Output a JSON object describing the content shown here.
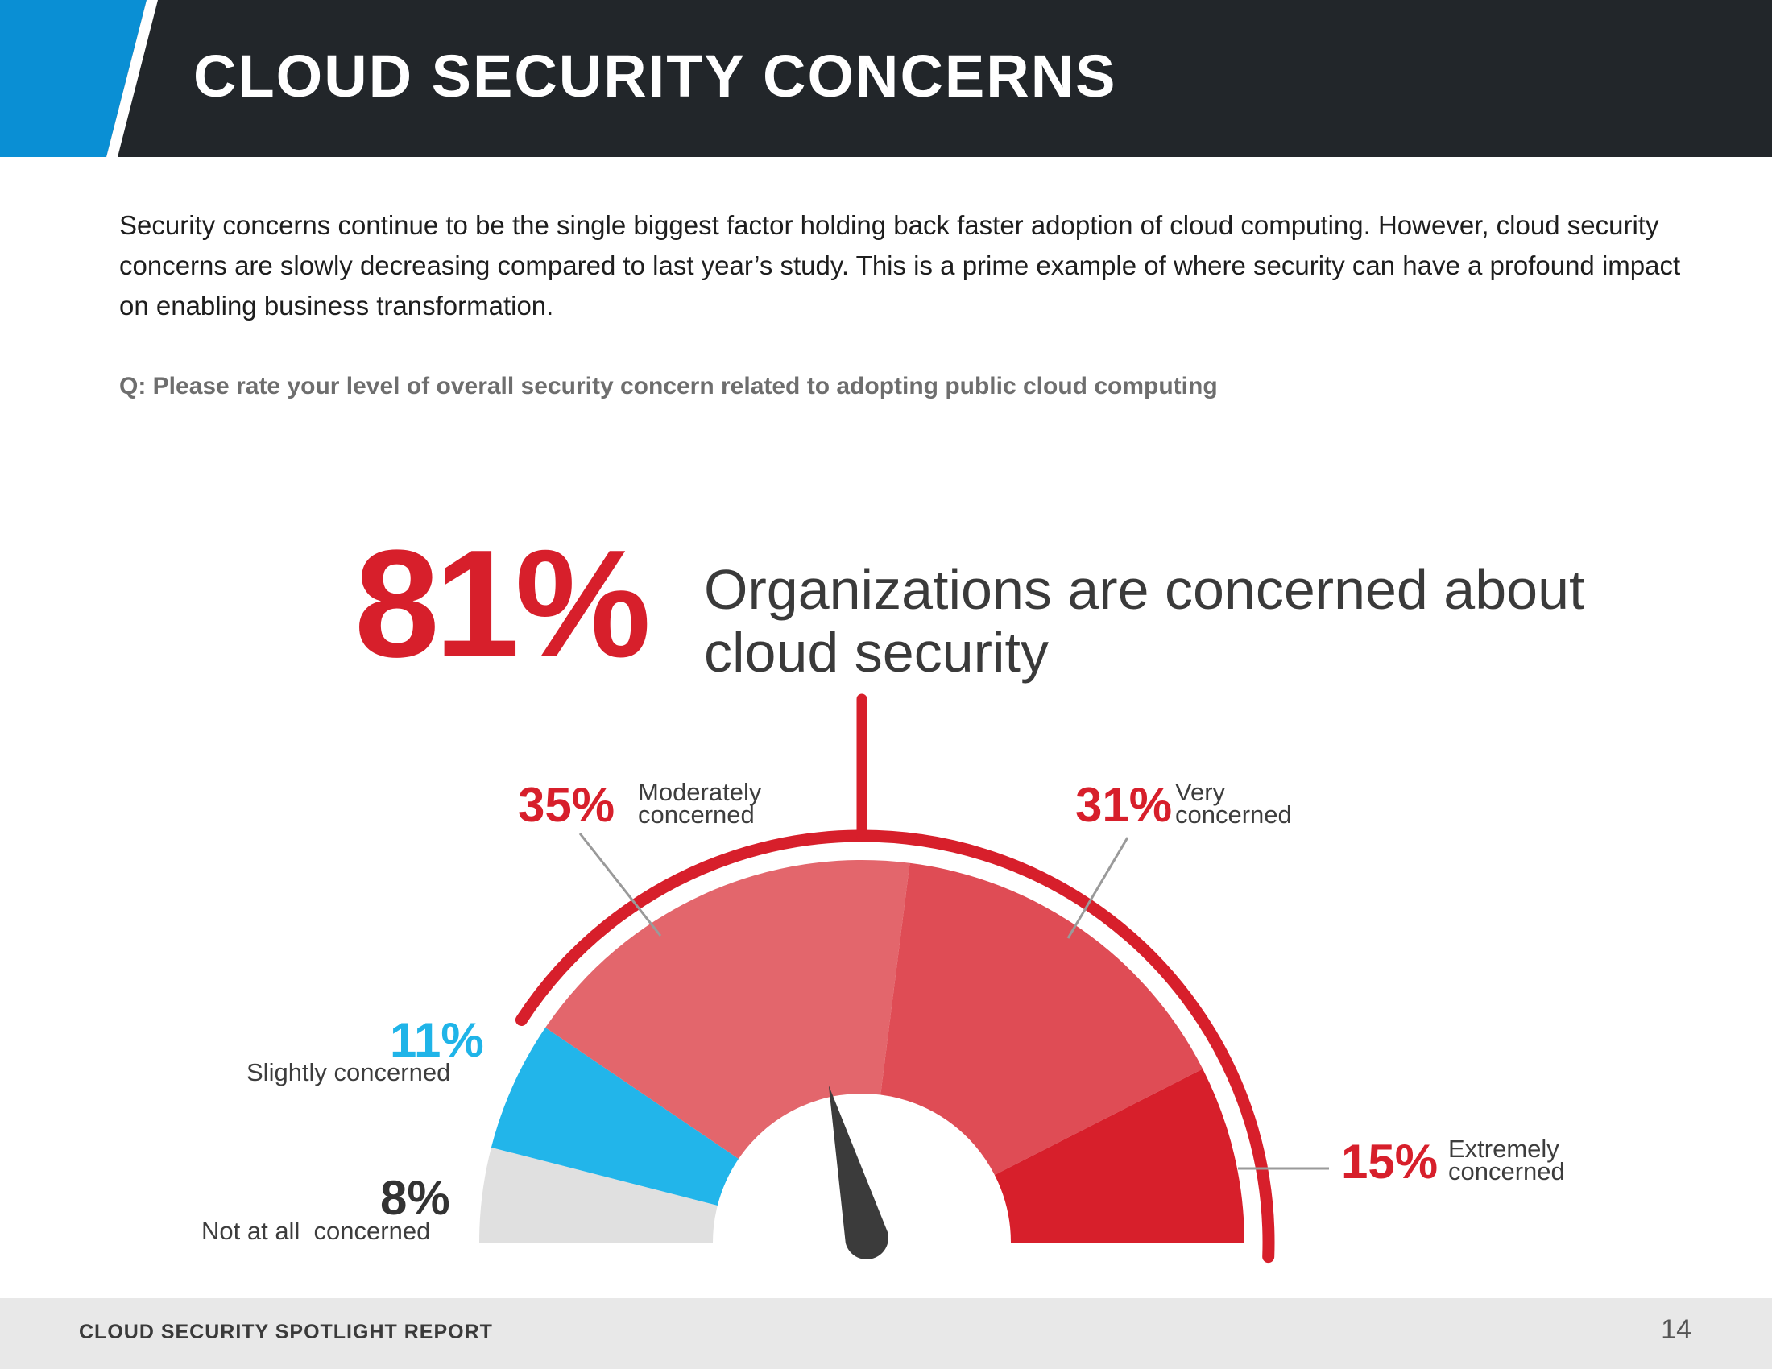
{
  "header": {
    "title": "CLOUD SECURITY CONCERNS",
    "accent_color": "#0a8fd4",
    "background_color": "#22262a"
  },
  "intro": {
    "text": "Security concerns continue to be the single biggest factor holding back faster adoption of cloud computing. However, cloud security concerns are slowly decreasing compared to last year’s study. This is a prime example of where security can have a profound impact on enabling business transformation."
  },
  "question": "Q: Please rate your level of overall security concern related to adopting public cloud computing",
  "headline": {
    "value": "81%",
    "text": "Organizations are concerned about cloud security"
  },
  "chart_data": {
    "type": "gauge",
    "segments": [
      {
        "label": "Not at all  concerned",
        "label_lines": [
          "Not at all  concerned"
        ],
        "value_label": "8%",
        "value": 8,
        "color": "#e0e0e0"
      },
      {
        "label": "Slightly concerned",
        "label_lines": [
          "Slightly concerned"
        ],
        "value_label": "11%",
        "value": 11,
        "color": "#22b5ea"
      },
      {
        "label": "Moderately concerned",
        "label_lines": [
          "Moderately",
          "concerned"
        ],
        "value_label": "35%",
        "value": 35,
        "color": "#e3666c"
      },
      {
        "label": "Very concerned",
        "label_lines": [
          "Very",
          "concerned"
        ],
        "value_label": "31%",
        "value": 31,
        "color": "#df4c55"
      },
      {
        "label": "Extremely concerned",
        "label_lines": [
          "Extremely",
          "concerned"
        ],
        "value_label": "15%",
        "value": 15,
        "color": "#d71f2b"
      }
    ],
    "highlight_total": 81,
    "highlight_color": "#d71f2b",
    "needle_color": "#3b3b3b"
  },
  "footer": {
    "label": "CLOUD SECURITY SPOTLIGHT REPORT",
    "page_number": "14"
  }
}
